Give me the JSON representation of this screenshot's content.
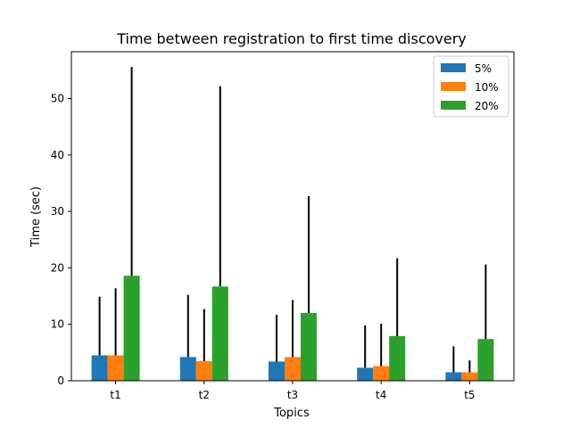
{
  "chart_data": {
    "type": "bar",
    "title": "Time between registration to first time discovery",
    "xlabel": "Topics",
    "ylabel": "Time (sec)",
    "categories": [
      "t1",
      "t2",
      "t3",
      "t4",
      "t5"
    ],
    "ylim": [
      0,
      58.3
    ],
    "yticks": [
      0,
      10,
      20,
      30,
      40,
      50
    ],
    "legend_position": "top-right",
    "series": [
      {
        "name": "5%",
        "color": "#1f77b4",
        "values": [
          4.5,
          4.2,
          3.4,
          2.3,
          1.5
        ],
        "error_upper": [
          14.9,
          15.2,
          11.7,
          9.8,
          6.1
        ]
      },
      {
        "name": "10%",
        "color": "#ff7f0e",
        "values": [
          4.5,
          3.5,
          4.2,
          2.6,
          1.5
        ],
        "error_upper": [
          16.4,
          12.7,
          14.3,
          10.1,
          3.6
        ]
      },
      {
        "name": "20%",
        "color": "#2ca02c",
        "values": [
          18.6,
          16.7,
          12.0,
          7.9,
          7.4
        ],
        "error_upper": [
          55.6,
          52.2,
          32.7,
          21.7,
          20.6
        ]
      }
    ]
  }
}
